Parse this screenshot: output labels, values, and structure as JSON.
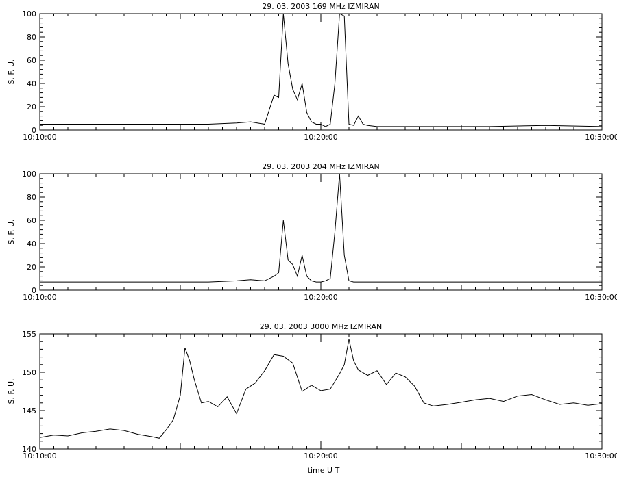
{
  "xlabel": "time  U T",
  "chart_data": [
    {
      "type": "line",
      "title": "29.  03.  2003    169  MHz     IZMIRAN",
      "ylabel": "S. F. U.",
      "xlim": [
        "10:10:00",
        "10:30:00"
      ],
      "ylim": [
        0,
        100
      ],
      "yticks": [
        "0",
        "20",
        "40",
        "60",
        "80",
        "100"
      ],
      "xticks": [
        "10:10:00",
        "10:20:00",
        "10:30:00"
      ],
      "series": [
        {
          "x": [
            "10:10:00",
            "10:12:00",
            "10:14:00",
            "10:16:00",
            "10:17:00",
            "10:17:30",
            "10:18:00",
            "10:18:20",
            "10:18:30",
            "10:18:40",
            "10:18:50",
            "10:19:00",
            "10:19:10",
            "10:19:20",
            "10:19:30",
            "10:19:40",
            "10:19:50",
            "10:20:00",
            "10:20:10",
            "10:20:20",
            "10:20:30",
            "10:20:40",
            "10:20:50",
            "10:21:00",
            "10:21:10",
            "10:21:20",
            "10:21:30",
            "10:21:40",
            "10:22:00",
            "10:24:00",
            "10:26:00",
            "10:28:00",
            "10:30:00"
          ],
          "y": [
            5,
            5,
            5,
            5,
            6,
            7,
            5,
            30,
            28,
            100,
            57,
            35,
            26,
            40,
            15,
            7,
            5,
            5,
            3,
            5,
            40,
            100,
            98,
            5,
            4,
            12,
            5,
            4,
            3,
            3,
            3,
            4,
            3
          ]
        }
      ]
    },
    {
      "type": "line",
      "title": "29.  03.  2003    204  MHz     IZMIRAN",
      "ylabel": "S. F. U.",
      "xlim": [
        "10:10:00",
        "10:30:00"
      ],
      "ylim": [
        0,
        100
      ],
      "yticks": [
        "0",
        "20",
        "40",
        "60",
        "80",
        "100"
      ],
      "xticks": [
        "10:10:00",
        "10:20:00",
        "10:30:00"
      ],
      "series": [
        {
          "x": [
            "10:10:00",
            "10:12:00",
            "10:14:00",
            "10:16:00",
            "10:17:00",
            "10:17:30",
            "10:18:00",
            "10:18:20",
            "10:18:30",
            "10:18:40",
            "10:18:50",
            "10:19:00",
            "10:19:10",
            "10:19:20",
            "10:19:30",
            "10:19:40",
            "10:19:50",
            "10:20:00",
            "10:20:10",
            "10:20:20",
            "10:20:30",
            "10:20:40",
            "10:20:50",
            "10:21:00",
            "10:21:10",
            "10:21:30",
            "10:22:00",
            "10:24:00",
            "10:26:00",
            "10:28:00",
            "10:30:00"
          ],
          "y": [
            7,
            7,
            7,
            7,
            8,
            9,
            8,
            12,
            15,
            60,
            26,
            22,
            12,
            30,
            12,
            8,
            7,
            7,
            8,
            10,
            50,
            100,
            30,
            8,
            7,
            7,
            7,
            7,
            7,
            7,
            7
          ]
        }
      ]
    },
    {
      "type": "line",
      "title": "29.  03.  2003    3000  MHz    IZMIRAN",
      "ylabel": "S. F. U.",
      "xlim": [
        "10:10:00",
        "10:30:00"
      ],
      "ylim": [
        140,
        155
      ],
      "yticks": [
        "140",
        "145",
        "150",
        "155"
      ],
      "xticks": [
        "10:10:00",
        "10:20:00",
        "10:30:00"
      ],
      "series": [
        {
          "x": [
            "10:10:00",
            "10:10:30",
            "10:11:00",
            "10:11:30",
            "10:12:00",
            "10:12:30",
            "10:13:00",
            "10:13:30",
            "10:14:00",
            "10:14:15",
            "10:14:30",
            "10:14:45",
            "10:15:00",
            "10:15:10",
            "10:15:20",
            "10:15:30",
            "10:15:45",
            "10:16:00",
            "10:16:20",
            "10:16:40",
            "10:17:00",
            "10:17:20",
            "10:17:40",
            "10:18:00",
            "10:18:20",
            "10:18:40",
            "10:19:00",
            "10:19:20",
            "10:19:40",
            "10:20:00",
            "10:20:20",
            "10:20:40",
            "10:20:50",
            "10:21:00",
            "10:21:10",
            "10:21:20",
            "10:21:40",
            "10:22:00",
            "10:22:20",
            "10:22:40",
            "10:23:00",
            "10:23:20",
            "10:23:40",
            "10:24:00",
            "10:24:30",
            "10:25:00",
            "10:25:30",
            "10:26:00",
            "10:26:30",
            "10:27:00",
            "10:27:30",
            "10:28:00",
            "10:28:30",
            "10:29:00",
            "10:29:30",
            "10:30:00"
          ],
          "y": [
            141.5,
            141.8,
            141.7,
            142.1,
            142.3,
            142.6,
            142.4,
            141.9,
            141.6,
            141.4,
            142.5,
            143.8,
            147.0,
            153.2,
            151.5,
            149.0,
            146.0,
            146.2,
            145.5,
            146.8,
            144.6,
            147.8,
            148.6,
            150.2,
            152.3,
            152.1,
            151.2,
            147.5,
            148.3,
            147.6,
            147.8,
            149.8,
            151.0,
            154.3,
            151.5,
            150.3,
            149.6,
            150.2,
            148.4,
            149.9,
            149.4,
            148.2,
            146.0,
            145.6,
            145.8,
            146.1,
            146.4,
            146.6,
            146.2,
            146.9,
            147.1,
            146.4,
            145.8,
            146.0,
            145.7,
            145.9
          ]
        }
      ]
    }
  ]
}
